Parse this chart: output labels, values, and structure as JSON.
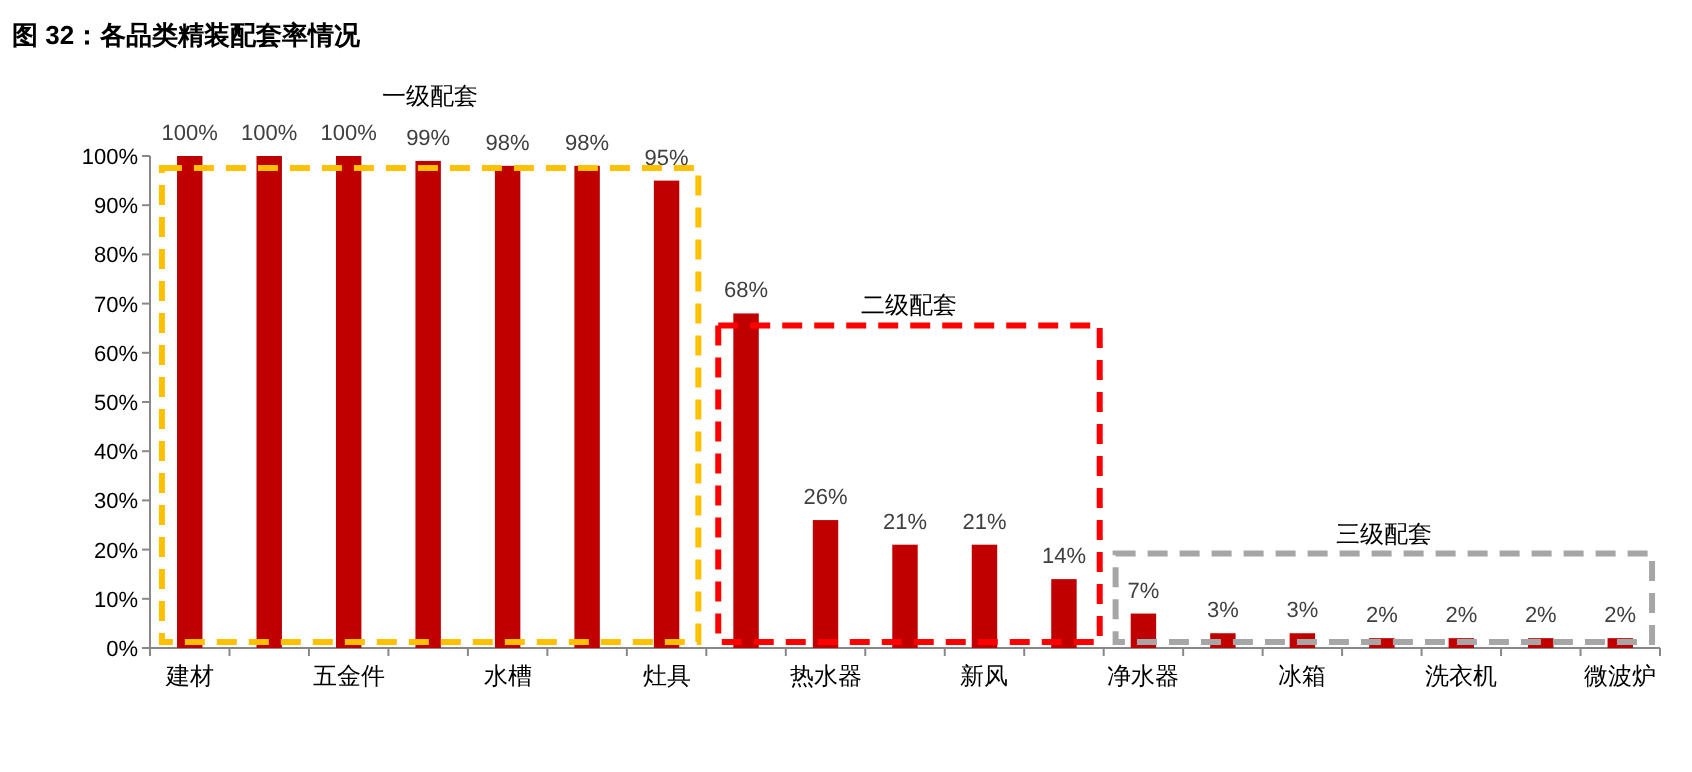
{
  "chart_data": {
    "type": "bar",
    "title": "图 32：各品类精装配套率情况",
    "categories": [
      "建材",
      null,
      "五金件",
      null,
      "水槽",
      null,
      "灶具",
      null,
      "热水器",
      null,
      "新风",
      null,
      "净水器",
      null,
      "冰箱",
      null,
      "洗衣机",
      null,
      "微波炉"
    ],
    "values": [
      100,
      100,
      100,
      99,
      98,
      98,
      95,
      68,
      26,
      21,
      21,
      14,
      7,
      3,
      3,
      2,
      2,
      2,
      2
    ],
    "value_labels": [
      "100%",
      "100%",
      "100%",
      "99%",
      "98%",
      "98%",
      "95%",
      "68%",
      "26%",
      "21%",
      "21%",
      "14%",
      "7%",
      "3%",
      "3%",
      "2%",
      "2%",
      "2%",
      "2%"
    ],
    "color": "#c00000",
    "ylim": [
      0,
      100
    ],
    "yticks": [
      {
        "value": 0,
        "label": "0%"
      },
      {
        "value": 10,
        "label": "10%"
      },
      {
        "value": 20,
        "label": "20%"
      },
      {
        "value": 30,
        "label": "30%"
      },
      {
        "value": 40,
        "label": "40%"
      },
      {
        "value": 50,
        "label": "50%"
      },
      {
        "value": 60,
        "label": "60%"
      },
      {
        "value": 70,
        "label": "70%"
      },
      {
        "value": 80,
        "label": "80%"
      },
      {
        "value": 90,
        "label": "90%"
      },
      {
        "value": 100,
        "label": "100%"
      }
    ],
    "annotations": [
      "一级配套",
      "二级配套",
      "三级配套"
    ],
    "grid": false
  }
}
